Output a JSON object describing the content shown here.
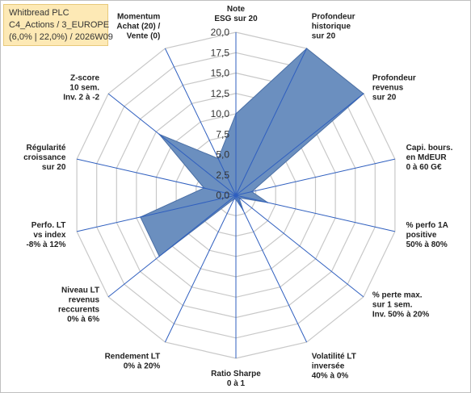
{
  "title_box": {
    "line1": "Whitbread PLC",
    "line2": "C4_Actions / 3_EUROPE",
    "line3": "(6,0% | 22,0%) / 2026W09"
  },
  "chart_data": {
    "type": "radar",
    "rlim": [
      0,
      20
    ],
    "ticks": [
      "0,0",
      "2,5",
      "5,0",
      "7,5",
      "10,0",
      "12,5",
      "15,0",
      "17,5",
      "20,0"
    ],
    "categories": [
      "Note ESG sur 20",
      "Profondeur historique sur 20",
      "Profondeur revenus sur 20",
      "Capi. bours. en MdEUR 0 à 60 G€",
      "% perfo 1A positive 50% à 80%",
      "% perte max. sur 1 sem. Inv. 50% à 20%",
      "Volatilité LT inversée 40% à 0%",
      "Ratio Sharpe 0 à 1",
      "Rendement LT 0% à 20%",
      "Niveau LT revenus reccurents 0% à 6%",
      "Perfo. LT vs index -8% à 12%",
      "Régularité croissance sur 20",
      "Z-score 10 sem. Inv. 2 à -2",
      "Momentum Achat (20) / Vente (0)"
    ],
    "category_lines": [
      [
        "Note",
        "ESG sur 20"
      ],
      [
        "Profondeur",
        "historique",
        "sur 20"
      ],
      [
        "Profondeur",
        "revenus",
        "sur 20"
      ],
      [
        "Capi. bours.",
        "en MdEUR",
        "0 à 60 G€"
      ],
      [
        "% perfo 1A",
        "positive",
        "50% à 80%"
      ],
      [
        "% perte max.",
        "sur 1 sem.",
        "Inv. 50% à 20%"
      ],
      [
        "Volatilité LT",
        "inversée",
        "40% à 0%"
      ],
      [
        "Ratio Sharpe",
        "0 à 1"
      ],
      [
        "Rendement LT",
        "0% à 20%"
      ],
      [
        "Niveau LT",
        "revenus",
        "reccurents",
        "0% à 6%"
      ],
      [
        "Perfo. LT",
        "vs index",
        "-8% à 12%"
      ],
      [
        "Régularité",
        "croissance",
        "sur 20"
      ],
      [
        "Z-score",
        "10 sem.",
        "Inv. 2 à -2"
      ],
      [
        "Momentum",
        "Achat (20) /",
        "Vente (0)"
      ]
    ],
    "values": [
      10,
      20,
      20,
      2,
      4,
      0.5,
      2,
      0.5,
      0.5,
      12,
      12,
      4,
      12,
      5
    ],
    "fill_color": "#6b8fbf",
    "stroke_color": "#4a6fa5",
    "grid_color": "#c8c8c8",
    "spoke_color": "#2f5fbf",
    "grid": true
  }
}
